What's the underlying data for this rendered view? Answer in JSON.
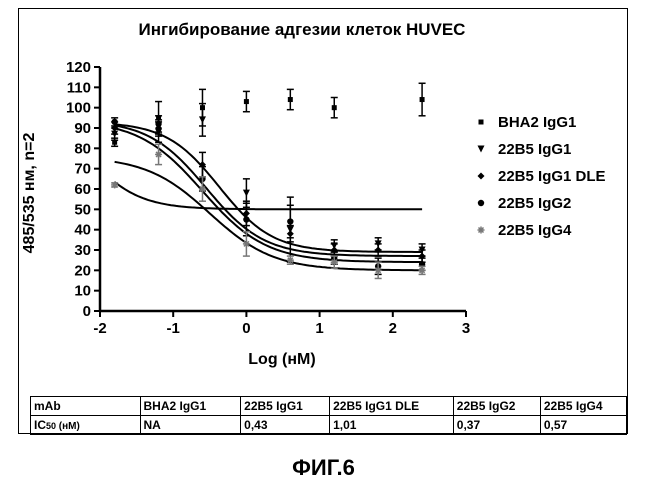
{
  "chart_data": {
    "type": "line",
    "title": "Ингибирование адгезии клеток HUVEC",
    "xlabel": "Log (нМ)",
    "ylabel": "485/535 нм, n=2",
    "xlim": [
      -2,
      3
    ],
    "ylim": [
      0,
      120
    ],
    "x_ticks": [
      -2,
      -1,
      0,
      1,
      2,
      3
    ],
    "y_ticks": [
      0,
      10,
      20,
      30,
      40,
      50,
      60,
      70,
      80,
      90,
      100,
      110,
      120
    ],
    "legend_position": "right",
    "series": [
      {
        "name": "BHA2 IgG1",
        "marker": "square",
        "color": "#000000",
        "points": [
          {
            "x": -1.8,
            "y": 83,
            "err": 2
          },
          {
            "x": -1.2,
            "y": 95,
            "err": 8
          },
          {
            "x": -0.6,
            "y": 100,
            "err": 9
          },
          {
            "x": 0,
            "y": 103,
            "err": 5
          },
          {
            "x": 0.6,
            "y": 104,
            "err": 5
          },
          {
            "x": 1.2,
            "y": 100,
            "err": 5
          },
          {
            "x": 2.4,
            "y": 104,
            "err": 8
          }
        ],
        "curve": {
          "bottom": 50,
          "top": 104,
          "logec50": -2.2,
          "hill": 1.2
        }
      },
      {
        "name": "22B5 IgG1",
        "marker": "triangle-down",
        "color": "#000000",
        "points": [
          {
            "x": -1.8,
            "y": 87,
            "err": 3
          },
          {
            "x": -1.2,
            "y": 88,
            "err": 5
          },
          {
            "x": -0.6,
            "y": 94,
            "err": 8
          },
          {
            "x": 0,
            "y": 58,
            "err": 7
          },
          {
            "x": 0.6,
            "y": 40,
            "err": 16
          },
          {
            "x": 1.2,
            "y": 32,
            "err": 3
          },
          {
            "x": 1.8,
            "y": 33,
            "err": 3
          },
          {
            "x": 2.4,
            "y": 30,
            "err": 3
          }
        ],
        "curve": {
          "bottom": 29,
          "top": 93,
          "logec50": -0.37,
          "hill": 1.2
        }
      },
      {
        "name": "22B5 IgG1 DLE",
        "marker": "diamond",
        "color": "#000000",
        "points": [
          {
            "x": -1.8,
            "y": 90,
            "err": 3
          },
          {
            "x": -1.2,
            "y": 90,
            "err": 4
          },
          {
            "x": -0.6,
            "y": 72,
            "err": 6
          },
          {
            "x": 0,
            "y": 48,
            "err": 6
          },
          {
            "x": 0.6,
            "y": 38,
            "err": 4
          },
          {
            "x": 1.2,
            "y": 30,
            "err": 3
          },
          {
            "x": 1.8,
            "y": 30,
            "err": 3
          },
          {
            "x": 2.4,
            "y": 27,
            "err": 3
          }
        ],
        "curve": {
          "bottom": 27,
          "top": 94,
          "logec50": -0.55,
          "hill": 1.1
        }
      },
      {
        "name": "22B5 IgG2",
        "marker": "circle",
        "color": "#000000",
        "points": [
          {
            "x": -1.8,
            "y": 93,
            "err": 2
          },
          {
            "x": -1.2,
            "y": 92,
            "err": 4
          },
          {
            "x": -0.6,
            "y": 65,
            "err": 6
          },
          {
            "x": 0,
            "y": 45,
            "err": 8
          },
          {
            "x": 0.6,
            "y": 44,
            "err": 8
          },
          {
            "x": 1.2,
            "y": 26,
            "err": 3
          },
          {
            "x": 1.8,
            "y": 22,
            "err": 4
          },
          {
            "x": 2.4,
            "y": 23,
            "err": 3
          }
        ],
        "curve": {
          "bottom": 24,
          "top": 94,
          "logec50": -0.6,
          "hill": 1.0
        }
      },
      {
        "name": "22B5 IgG4",
        "marker": "asterisk",
        "color": "#777777",
        "points": [
          {
            "x": -1.8,
            "y": 62,
            "err": 1
          },
          {
            "x": -1.2,
            "y": 77,
            "err": 5
          },
          {
            "x": -0.6,
            "y": 60,
            "err": 6
          },
          {
            "x": 0,
            "y": 33,
            "err": 6
          },
          {
            "x": 0.6,
            "y": 25,
            "err": 2
          },
          {
            "x": 1.2,
            "y": 24,
            "err": 3
          },
          {
            "x": 1.8,
            "y": 20,
            "err": 4
          },
          {
            "x": 2.4,
            "y": 20,
            "err": 2
          }
        ],
        "curve": {
          "bottom": 20,
          "top": 76,
          "logec50": -0.5,
          "hill": 1.0
        }
      }
    ]
  },
  "table": {
    "header": [
      "mAb",
      "BHA2 IgG1",
      "22B5 IgG1",
      "22B5 IgG1 DLE",
      "22B5 IgG2",
      "22B5 IgG4"
    ],
    "row_label_main": "IC",
    "row_label_sub": "50",
    "row_label_unit": " (нМ)",
    "values": [
      "NA",
      "0,43",
      "1,01",
      "0,37",
      "0,57"
    ]
  },
  "caption": "ФИГ.6"
}
